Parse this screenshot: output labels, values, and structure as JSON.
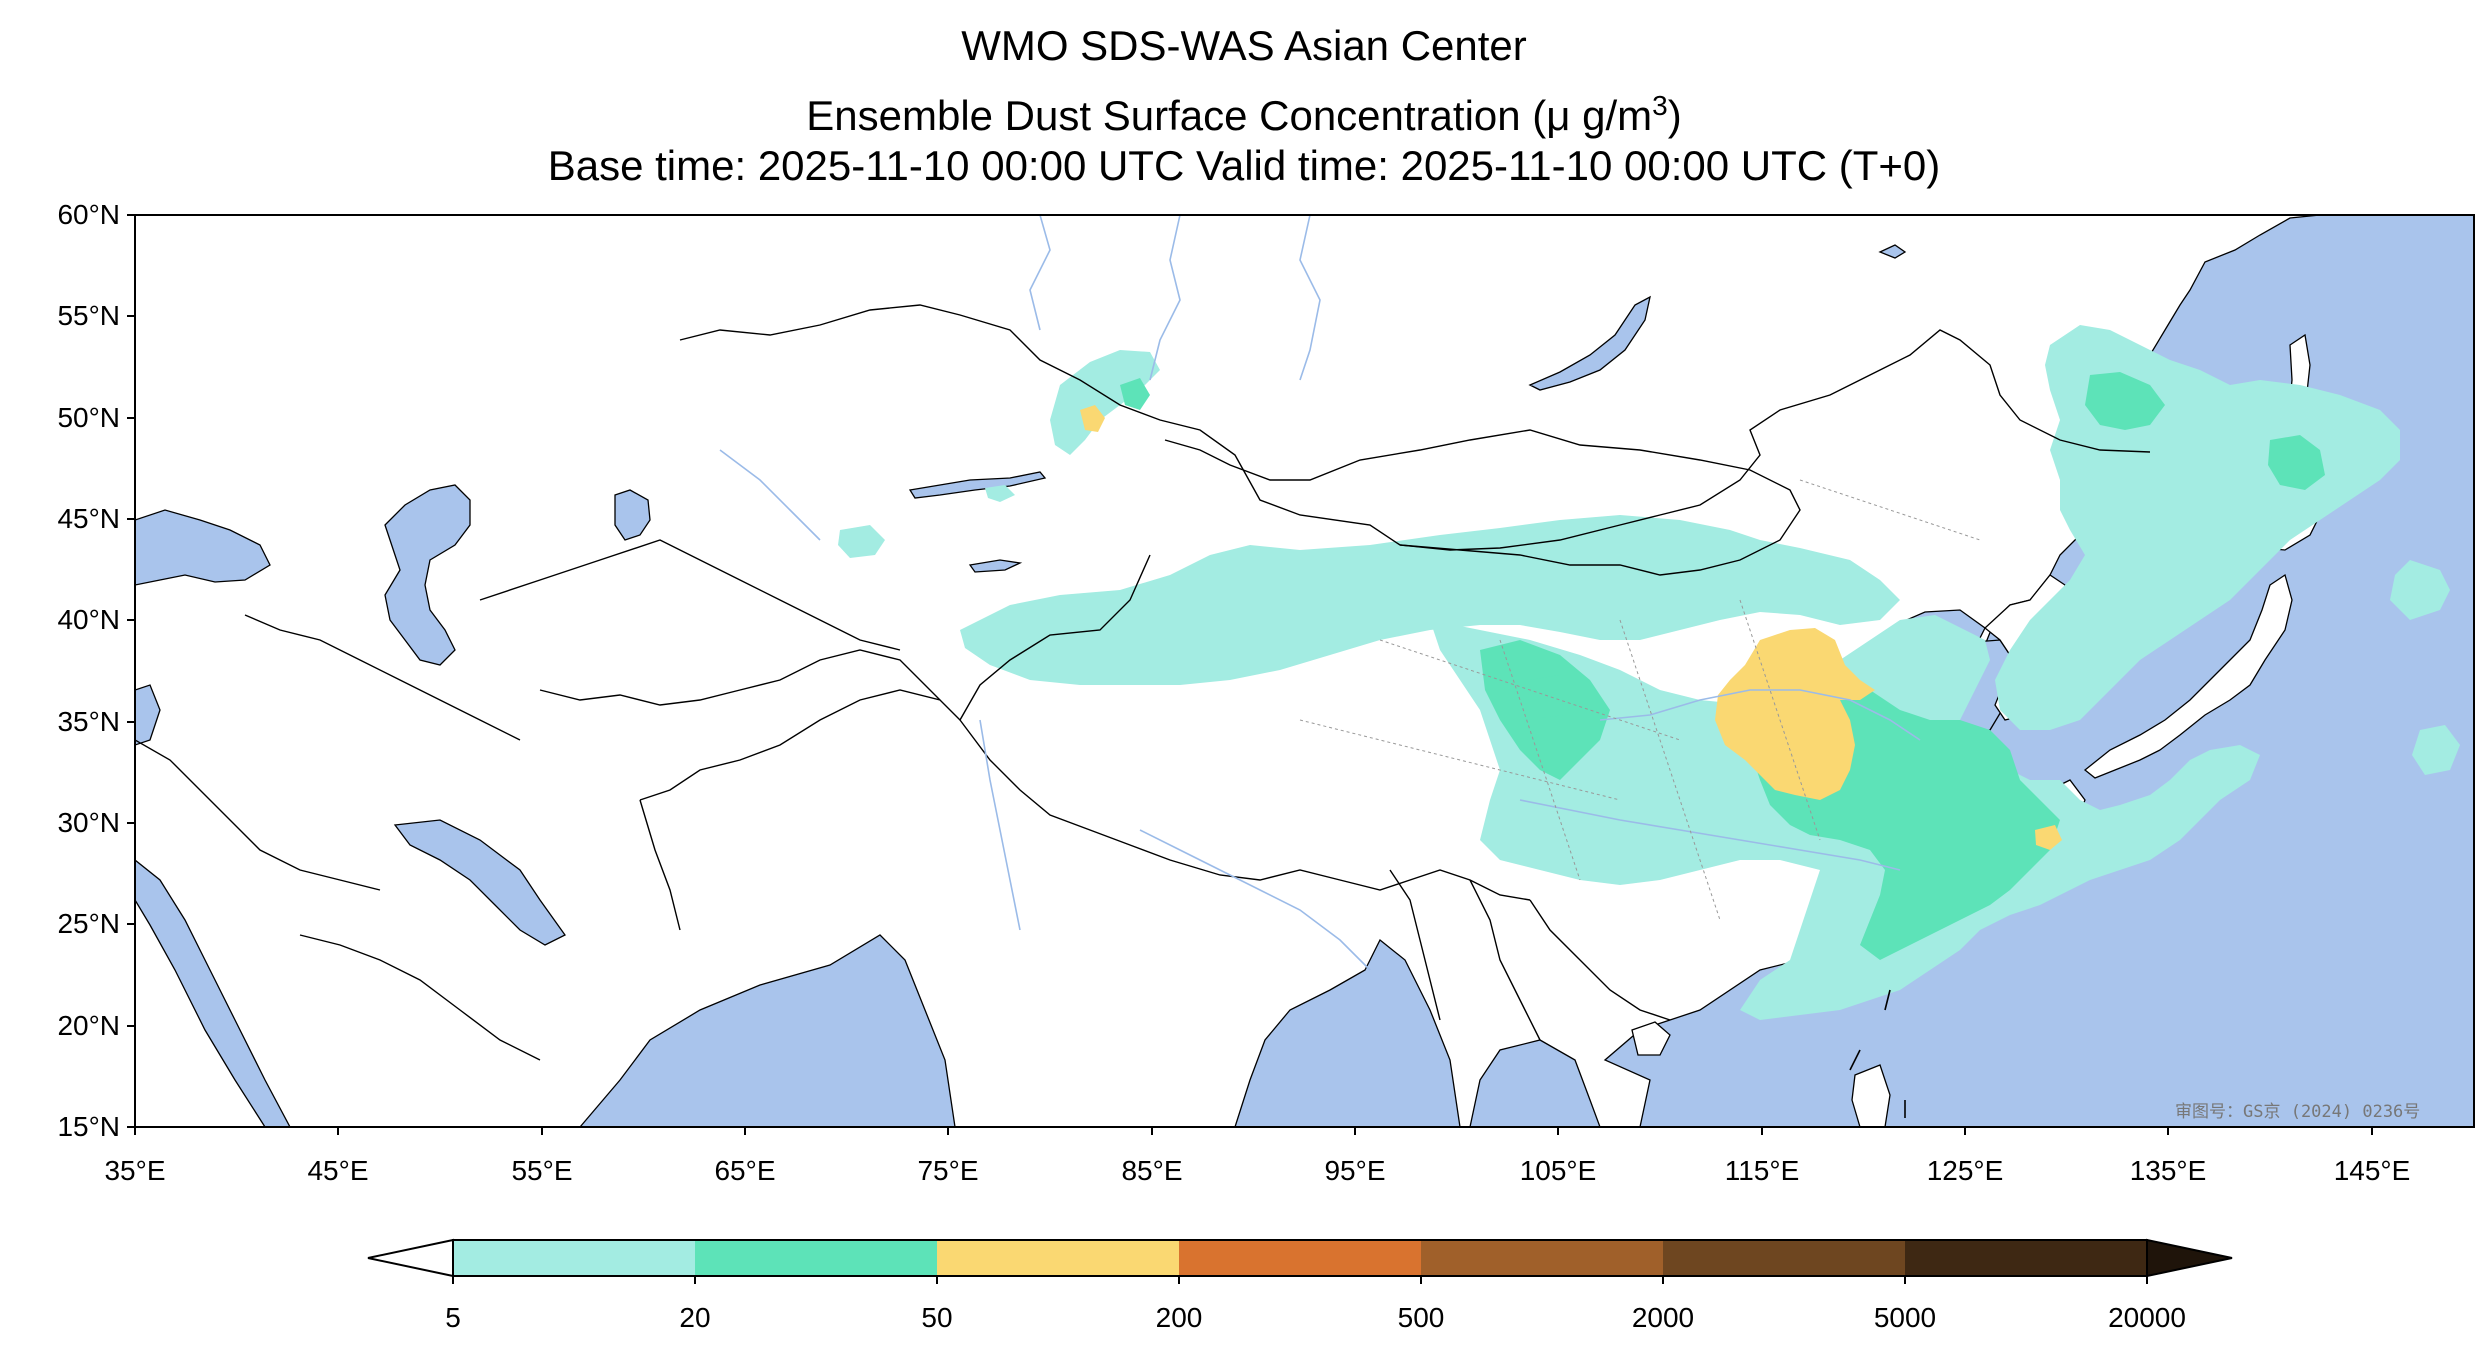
{
  "title": {
    "line1": "WMO SDS-WAS Asian Center",
    "line2_prefix": "Ensemble Dust Surface Concentration (",
    "line2_unit_base": "μ g/m",
    "line2_unit_sup": "3",
    "line2_suffix": ")",
    "line3": "Base time: 2025-11-10 00:00 UTC Valid time: 2025-11-10 00:00 UTC (T+0)"
  },
  "map": {
    "lon_range": [
      35,
      150
    ],
    "lat_range": [
      15,
      60
    ],
    "lat_ticks": [
      "60°N",
      "55°N",
      "50°N",
      "45°N",
      "40°N",
      "35°N",
      "30°N",
      "25°N",
      "20°N",
      "15°N"
    ],
    "lon_ticks": [
      "35°E",
      "45°E",
      "55°E",
      "65°E",
      "75°E",
      "85°E",
      "95°E",
      "105°E",
      "115°E",
      "125°E",
      "135°E",
      "145°E"
    ],
    "approval_mark": "审图号：GS京 (2024) 0236号",
    "ocean_color": "#a9c4ec",
    "land_color": "#ffffff"
  },
  "colorbar": {
    "levels": [
      "5",
      "20",
      "50",
      "200",
      "500",
      "2000",
      "5000",
      "20000"
    ],
    "colors": [
      "#ffffff",
      "#a3ece2",
      "#5de3b8",
      "#fad872",
      "#d9732f",
      "#a0602a",
      "#6e4620",
      "#3e2813",
      "#1f140a"
    ]
  }
}
